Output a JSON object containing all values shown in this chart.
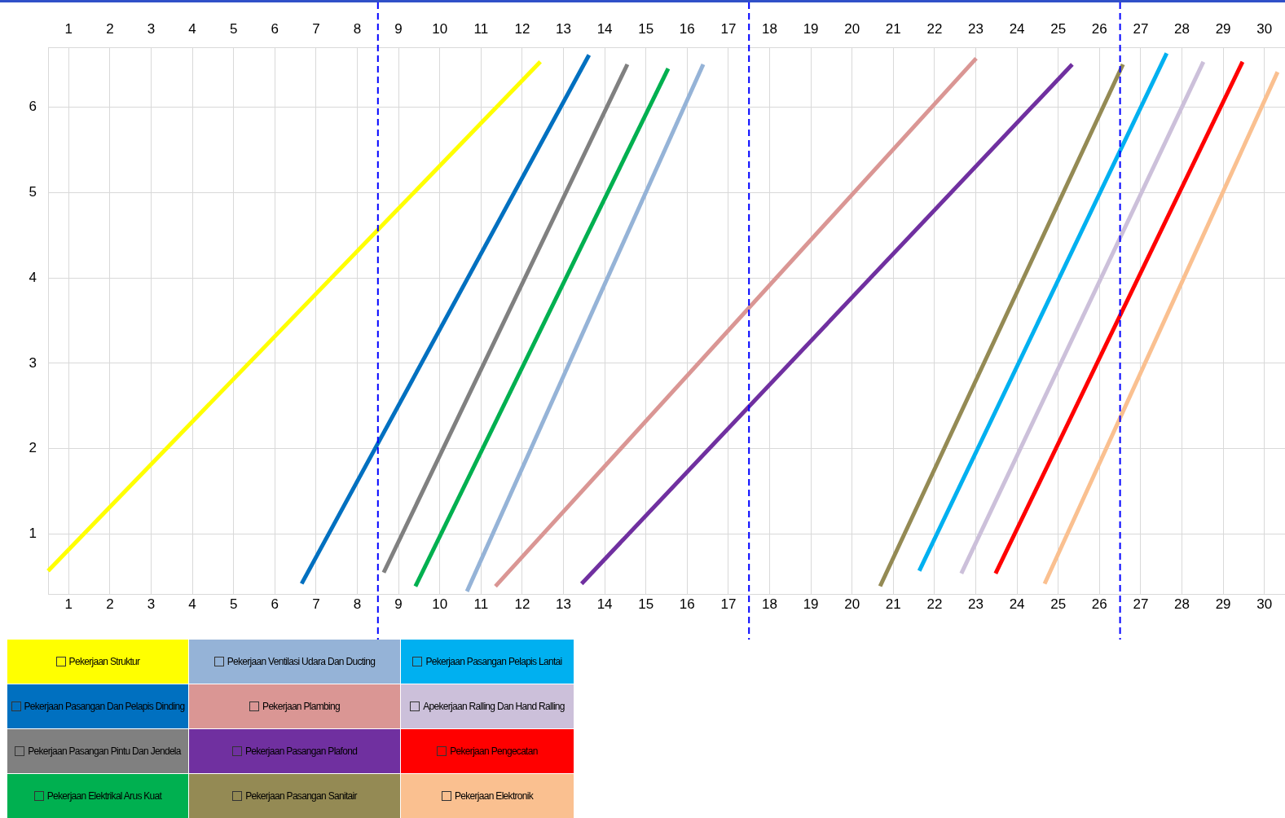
{
  "chart_data": {
    "type": "line",
    "marker": "none",
    "line_style": "solid",
    "grid": true,
    "legend": "bottom",
    "xlim": [
      0.5,
      30.5
    ],
    "xticks": [
      1,
      2,
      3,
      4,
      5,
      6,
      7,
      8,
      9,
      10,
      11,
      12,
      13,
      14,
      15,
      16,
      17,
      18,
      19,
      20,
      21,
      22,
      23,
      24,
      25,
      26,
      27,
      28,
      29,
      30
    ],
    "x2lim": [
      0.5,
      30.5
    ],
    "x2ticks": [
      1,
      2,
      3,
      4,
      5,
      6,
      7,
      8,
      9,
      10,
      11,
      12,
      13,
      14,
      15,
      16,
      17,
      18,
      19,
      20,
      21,
      22,
      23,
      24,
      25,
      26,
      27,
      28,
      29,
      30
    ],
    "ylim": [
      0.3,
      6.7
    ],
    "yticks": [
      1,
      2,
      3,
      4,
      5,
      6
    ],
    "ref_lines": [
      {
        "axis": "x",
        "value": 8.5,
        "color": "#0000ff",
        "line_style": "dashed"
      },
      {
        "axis": "x",
        "value": 17.5,
        "color": "#0000ff",
        "line_style": "dashed"
      },
      {
        "axis": "x",
        "value": 26.5,
        "color": "#0000ff",
        "line_style": "dashed"
      }
    ],
    "series": [
      {
        "name": "Pekerjaan Struktur",
        "color": "#ffff00",
        "x": [
          0.5,
          12.44
        ],
        "values": [
          0.57,
          6.53
        ]
      },
      {
        "name": "Pekerjaan Pasangan Dan Pelapis Dinding",
        "color": "#0070c0",
        "x": [
          6.65,
          13.62
        ],
        "values": [
          0.42,
          6.61
        ]
      },
      {
        "name": "Pekerjaan Pasangan Pintu Dan Jendela",
        "color": "#808080",
        "x": [
          8.64,
          14.55
        ],
        "values": [
          0.55,
          6.5
        ]
      },
      {
        "name": "Pekerjaan Elektrikal Arus Kuat",
        "color": "#00b050",
        "x": [
          9.41,
          15.54
        ],
        "values": [
          0.39,
          6.45
        ]
      },
      {
        "name": "Pekerjaan Ventilasi Udara Dan Ducting",
        "color": "#95b3d7",
        "x": [
          10.66,
          16.39
        ],
        "values": [
          0.33,
          6.5
        ]
      },
      {
        "name": "Pekerjaan Plambing",
        "color": "#da9694",
        "x": [
          11.35,
          23.01
        ],
        "values": [
          0.39,
          6.57
        ]
      },
      {
        "name": "Pekerjaan Pasangan Plafond",
        "color": "#7030a0",
        "x": [
          13.44,
          25.34
        ],
        "values": [
          0.42,
          6.5
        ]
      },
      {
        "name": "Pekerjaan Pasangan Sanitair",
        "color": "#948a54",
        "x": [
          20.68,
          26.57
        ],
        "values": [
          0.39,
          6.5
        ]
      },
      {
        "name": "Pekerjaan Pasangan Pelapis Lantai",
        "color": "#00b0f0",
        "x": [
          21.63,
          27.63
        ],
        "values": [
          0.57,
          6.63
        ]
      },
      {
        "name": "Apekerjaan Ralling Dan Hand Ralling",
        "color": "#ccc0da",
        "x": [
          22.65,
          28.52
        ],
        "values": [
          0.54,
          6.53
        ]
      },
      {
        "name": "Pekerjaan Pengecatan",
        "color": "#ff0000",
        "x": [
          23.48,
          29.47
        ],
        "values": [
          0.54,
          6.53
        ]
      },
      {
        "name": "Pekerjaan Elektronik",
        "color": "#fac090",
        "x": [
          24.67,
          30.32
        ],
        "values": [
          0.42,
          6.41
        ]
      }
    ]
  }
}
